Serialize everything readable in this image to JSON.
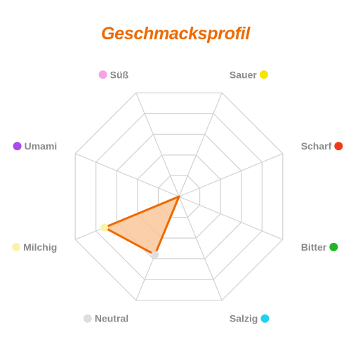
{
  "chart_data": {
    "type": "radar",
    "title": "Geschmacksprofil",
    "title_color": "#ee6a00",
    "grid": true,
    "rmax": 5,
    "grid_levels": [
      1,
      2,
      3,
      4,
      5
    ],
    "axes": [
      {
        "label": "Süß",
        "color": "#f6a3e6",
        "dot_side": "left"
      },
      {
        "label": "Sauer",
        "color": "#f7e200",
        "dot_side": "right"
      },
      {
        "label": "Scharf",
        "color": "#f03a17",
        "dot_side": "right"
      },
      {
        "label": "Bitter",
        "color": "#22b522",
        "dot_side": "right"
      },
      {
        "label": "Salzig",
        "color": "#1fd3f0",
        "dot_side": "right"
      },
      {
        "label": "Neutral",
        "color": "#dedede",
        "dot_side": "left"
      },
      {
        "label": "Milchig",
        "color": "#fbf3a9",
        "dot_side": "left"
      },
      {
        "label": "Umami",
        "color": "#a84be8",
        "dot_side": "left"
      }
    ],
    "series": [
      {
        "values": [
          0,
          0,
          0,
          0,
          0,
          2.8,
          3.6,
          0
        ],
        "stroke": "#ee6a00",
        "fill": "#f9c79a"
      }
    ]
  }
}
